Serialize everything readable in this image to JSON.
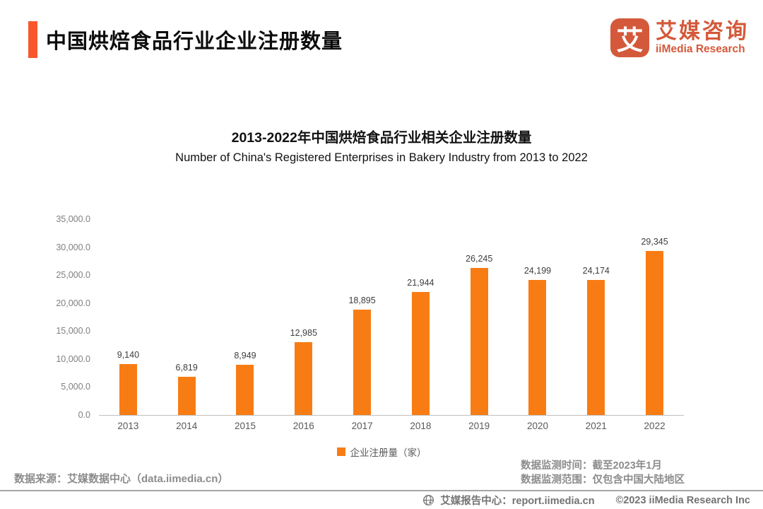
{
  "header": {
    "title": "中国烘焙食品行业企业注册数量",
    "logo": {
      "glyph": "艾",
      "name_cn": "艾媒咨询",
      "name_en": "iiMedia Research"
    }
  },
  "chart_data": {
    "type": "bar",
    "title": "2013-2022年中国烘焙食品行业相关企业注册数量",
    "subtitle": "Number of China's Registered Enterprises in Bakery Industry from 2013 to 2022",
    "categories": [
      "2013",
      "2014",
      "2015",
      "2016",
      "2017",
      "2018",
      "2019",
      "2020",
      "2021",
      "2022"
    ],
    "values": [
      9140,
      6819,
      8949,
      12985,
      18895,
      21944,
      26245,
      24199,
      24174,
      29345
    ],
    "value_labels": [
      "9,140",
      "6,819",
      "8,949",
      "12,985",
      "18,895",
      "21,944",
      "26,245",
      "24,199",
      "24,174",
      "29,345"
    ],
    "ylim": [
      0,
      35000
    ],
    "ytick_step": 5000,
    "ytick_labels": [
      "0.0",
      "5,000.0",
      "10,000.0",
      "15,000.0",
      "20,000.0",
      "25,000.0",
      "30,000.0",
      "35,000.0"
    ],
    "grid": false,
    "legend_position": "bottom",
    "legend": [
      {
        "label": "企业注册量（家）",
        "color": "#f87c14"
      }
    ],
    "bar_color": "#f87c14"
  },
  "notes": {
    "monitor_time": "数据监测时间：截至2023年1月",
    "monitor_scope": "数据监测范围：仅包含中国大陆地区",
    "source": "数据来源：艾媒数据中心（data.iimedia.cn）"
  },
  "footer": {
    "report_center": "艾媒报告中心：report.iimedia.cn",
    "copyright": "©2023 iiMedia Research  Inc"
  },
  "colors": {
    "bar": "#f87c14",
    "accent_bar": "#f8572b",
    "logo": "#d4593a",
    "axis_text": "#7f7f7f",
    "note_text": "#8c8c8c"
  }
}
